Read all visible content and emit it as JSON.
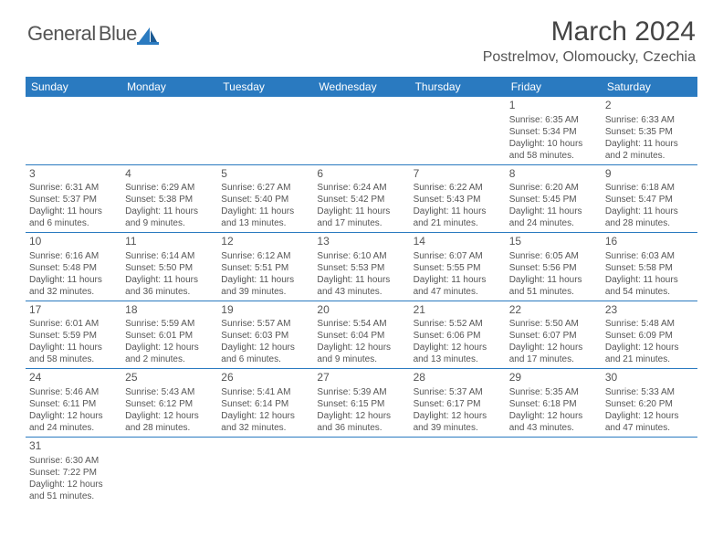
{
  "logo": {
    "word1": "General",
    "word2": "Blue"
  },
  "title": "March 2024",
  "location": "Postrelmov, Olomoucky, Czechia",
  "colors": {
    "header_bg": "#2a7ac0",
    "header_text": "#ffffff",
    "text": "#555555",
    "border": "#2a7ac0",
    "logo_gray": "#555555",
    "logo_blue": "#2176bd"
  },
  "fonts": {
    "title_size": 30,
    "location_size": 16,
    "dayheader_size": 12,
    "daynum_size": 12,
    "cell_size": 10
  },
  "dayNames": [
    "Sunday",
    "Monday",
    "Tuesday",
    "Wednesday",
    "Thursday",
    "Friday",
    "Saturday"
  ],
  "weeks": [
    [
      null,
      null,
      null,
      null,
      null,
      {
        "n": "1",
        "sr": "Sunrise: 6:35 AM",
        "ss": "Sunset: 5:34 PM",
        "dl": "Daylight: 10 hours and 58 minutes."
      },
      {
        "n": "2",
        "sr": "Sunrise: 6:33 AM",
        "ss": "Sunset: 5:35 PM",
        "dl": "Daylight: 11 hours and 2 minutes."
      }
    ],
    [
      {
        "n": "3",
        "sr": "Sunrise: 6:31 AM",
        "ss": "Sunset: 5:37 PM",
        "dl": "Daylight: 11 hours and 6 minutes."
      },
      {
        "n": "4",
        "sr": "Sunrise: 6:29 AM",
        "ss": "Sunset: 5:38 PM",
        "dl": "Daylight: 11 hours and 9 minutes."
      },
      {
        "n": "5",
        "sr": "Sunrise: 6:27 AM",
        "ss": "Sunset: 5:40 PM",
        "dl": "Daylight: 11 hours and 13 minutes."
      },
      {
        "n": "6",
        "sr": "Sunrise: 6:24 AM",
        "ss": "Sunset: 5:42 PM",
        "dl": "Daylight: 11 hours and 17 minutes."
      },
      {
        "n": "7",
        "sr": "Sunrise: 6:22 AM",
        "ss": "Sunset: 5:43 PM",
        "dl": "Daylight: 11 hours and 21 minutes."
      },
      {
        "n": "8",
        "sr": "Sunrise: 6:20 AM",
        "ss": "Sunset: 5:45 PM",
        "dl": "Daylight: 11 hours and 24 minutes."
      },
      {
        "n": "9",
        "sr": "Sunrise: 6:18 AM",
        "ss": "Sunset: 5:47 PM",
        "dl": "Daylight: 11 hours and 28 minutes."
      }
    ],
    [
      {
        "n": "10",
        "sr": "Sunrise: 6:16 AM",
        "ss": "Sunset: 5:48 PM",
        "dl": "Daylight: 11 hours and 32 minutes."
      },
      {
        "n": "11",
        "sr": "Sunrise: 6:14 AM",
        "ss": "Sunset: 5:50 PM",
        "dl": "Daylight: 11 hours and 36 minutes."
      },
      {
        "n": "12",
        "sr": "Sunrise: 6:12 AM",
        "ss": "Sunset: 5:51 PM",
        "dl": "Daylight: 11 hours and 39 minutes."
      },
      {
        "n": "13",
        "sr": "Sunrise: 6:10 AM",
        "ss": "Sunset: 5:53 PM",
        "dl": "Daylight: 11 hours and 43 minutes."
      },
      {
        "n": "14",
        "sr": "Sunrise: 6:07 AM",
        "ss": "Sunset: 5:55 PM",
        "dl": "Daylight: 11 hours and 47 minutes."
      },
      {
        "n": "15",
        "sr": "Sunrise: 6:05 AM",
        "ss": "Sunset: 5:56 PM",
        "dl": "Daylight: 11 hours and 51 minutes."
      },
      {
        "n": "16",
        "sr": "Sunrise: 6:03 AM",
        "ss": "Sunset: 5:58 PM",
        "dl": "Daylight: 11 hours and 54 minutes."
      }
    ],
    [
      {
        "n": "17",
        "sr": "Sunrise: 6:01 AM",
        "ss": "Sunset: 5:59 PM",
        "dl": "Daylight: 11 hours and 58 minutes."
      },
      {
        "n": "18",
        "sr": "Sunrise: 5:59 AM",
        "ss": "Sunset: 6:01 PM",
        "dl": "Daylight: 12 hours and 2 minutes."
      },
      {
        "n": "19",
        "sr": "Sunrise: 5:57 AM",
        "ss": "Sunset: 6:03 PM",
        "dl": "Daylight: 12 hours and 6 minutes."
      },
      {
        "n": "20",
        "sr": "Sunrise: 5:54 AM",
        "ss": "Sunset: 6:04 PM",
        "dl": "Daylight: 12 hours and 9 minutes."
      },
      {
        "n": "21",
        "sr": "Sunrise: 5:52 AM",
        "ss": "Sunset: 6:06 PM",
        "dl": "Daylight: 12 hours and 13 minutes."
      },
      {
        "n": "22",
        "sr": "Sunrise: 5:50 AM",
        "ss": "Sunset: 6:07 PM",
        "dl": "Daylight: 12 hours and 17 minutes."
      },
      {
        "n": "23",
        "sr": "Sunrise: 5:48 AM",
        "ss": "Sunset: 6:09 PM",
        "dl": "Daylight: 12 hours and 21 minutes."
      }
    ],
    [
      {
        "n": "24",
        "sr": "Sunrise: 5:46 AM",
        "ss": "Sunset: 6:11 PM",
        "dl": "Daylight: 12 hours and 24 minutes."
      },
      {
        "n": "25",
        "sr": "Sunrise: 5:43 AM",
        "ss": "Sunset: 6:12 PM",
        "dl": "Daylight: 12 hours and 28 minutes."
      },
      {
        "n": "26",
        "sr": "Sunrise: 5:41 AM",
        "ss": "Sunset: 6:14 PM",
        "dl": "Daylight: 12 hours and 32 minutes."
      },
      {
        "n": "27",
        "sr": "Sunrise: 5:39 AM",
        "ss": "Sunset: 6:15 PM",
        "dl": "Daylight: 12 hours and 36 minutes."
      },
      {
        "n": "28",
        "sr": "Sunrise: 5:37 AM",
        "ss": "Sunset: 6:17 PM",
        "dl": "Daylight: 12 hours and 39 minutes."
      },
      {
        "n": "29",
        "sr": "Sunrise: 5:35 AM",
        "ss": "Sunset: 6:18 PM",
        "dl": "Daylight: 12 hours and 43 minutes."
      },
      {
        "n": "30",
        "sr": "Sunrise: 5:33 AM",
        "ss": "Sunset: 6:20 PM",
        "dl": "Daylight: 12 hours and 47 minutes."
      }
    ],
    [
      {
        "n": "31",
        "sr": "Sunrise: 6:30 AM",
        "ss": "Sunset: 7:22 PM",
        "dl": "Daylight: 12 hours and 51 minutes."
      },
      null,
      null,
      null,
      null,
      null,
      null
    ]
  ]
}
